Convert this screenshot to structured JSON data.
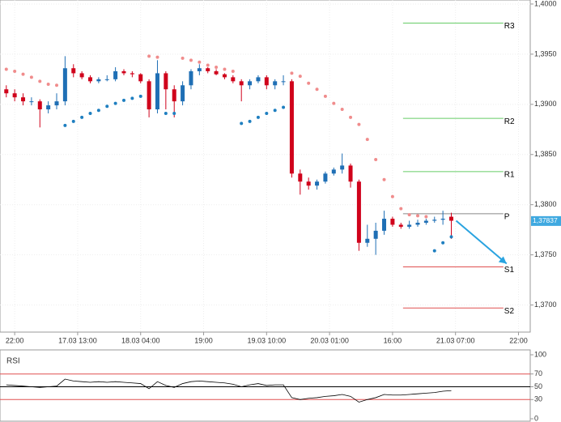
{
  "chart_data": [
    {
      "type": "candlestick",
      "x": [
        -2,
        0,
        2,
        4,
        6,
        8,
        10,
        12,
        14,
        16,
        18,
        20,
        22,
        24,
        26,
        28,
        30,
        32,
        34,
        36,
        38,
        40,
        42,
        44,
        46,
        48,
        50,
        52,
        54,
        56,
        58,
        60,
        62,
        64,
        66,
        68,
        70,
        72,
        74,
        76,
        78,
        80,
        82,
        84,
        86,
        88,
        90,
        92,
        94,
        96,
        98,
        100,
        102,
        104
      ],
      "ohlc": [
        [
          1.3915,
          1.3919,
          1.3907,
          1.3911
        ],
        [
          1.3911,
          1.3915,
          1.3903,
          1.3907
        ],
        [
          1.3907,
          1.3911,
          1.3899,
          1.3903
        ],
        [
          1.3903,
          1.3907,
          1.3899,
          1.3903
        ],
        [
          1.3903,
          1.3905,
          1.3877,
          1.3895
        ],
        [
          1.3895,
          1.3903,
          1.3891,
          1.3899
        ],
        [
          1.3899,
          1.3911,
          1.3895,
          1.3903
        ],
        [
          1.3903,
          1.3948,
          1.3899,
          1.3936
        ],
        [
          1.3936,
          1.394,
          1.3927,
          1.3931
        ],
        [
          1.3931,
          1.3933,
          1.3925,
          1.3927
        ],
        [
          1.3927,
          1.3929,
          1.3921,
          1.3923
        ],
        [
          1.3923,
          1.3927,
          1.3921,
          1.3925
        ],
        [
          1.3925,
          1.3929,
          1.3923,
          1.3925
        ],
        [
          1.3925,
          1.3937,
          1.3923,
          1.3933
        ],
        [
          1.3933,
          1.3935,
          1.3929,
          1.3931
        ],
        [
          1.3931,
          1.3933,
          1.3927,
          1.393
        ],
        [
          1.393,
          1.3931,
          1.3921,
          1.3923
        ],
        [
          1.3923,
          1.3925,
          1.3887,
          1.3895
        ],
        [
          1.3895,
          1.3944,
          1.3891,
          1.3931
        ],
        [
          1.3931,
          1.3933,
          1.3895,
          1.3915
        ],
        [
          1.3915,
          1.3919,
          1.3887,
          1.3903
        ],
        [
          1.3903,
          1.3923,
          1.3899,
          1.3919
        ],
        [
          1.3919,
          1.3935,
          1.3915,
          1.3933
        ],
        [
          1.3933,
          1.394,
          1.3929,
          1.3936
        ],
        [
          1.3936,
          1.3937,
          1.3931,
          1.3933
        ],
        [
          1.3933,
          1.3935,
          1.3929,
          1.393
        ],
        [
          1.393,
          1.3931,
          1.3925,
          1.3927
        ],
        [
          1.3927,
          1.3929,
          1.3921,
          1.3923
        ],
        [
          1.3923,
          1.3925,
          1.3903,
          1.3919
        ],
        [
          1.3919,
          1.3925,
          1.3915,
          1.3923
        ],
        [
          1.3923,
          1.3929,
          1.3921,
          1.3927
        ],
        [
          1.3927,
          1.3929,
          1.3915,
          1.3919
        ],
        [
          1.3919,
          1.3925,
          1.3915,
          1.3923
        ],
        [
          1.3923,
          1.3929,
          1.3919,
          1.3923
        ],
        [
          1.3923,
          1.3925,
          1.3827,
          1.3831
        ],
        [
          1.3831,
          1.3835,
          1.381,
          1.3823
        ],
        [
          1.3823,
          1.3827,
          1.3815,
          1.3819
        ],
        [
          1.3819,
          1.3825,
          1.3815,
          1.3823
        ],
        [
          1.3823,
          1.3833,
          1.3821,
          1.3831
        ],
        [
          1.3831,
          1.3837,
          1.3829,
          1.3835
        ],
        [
          1.3835,
          1.3851,
          1.3831,
          1.3839
        ],
        [
          1.3839,
          1.3841,
          1.3817,
          1.3823
        ],
        [
          1.3823,
          1.3825,
          1.3754,
          1.3762
        ],
        [
          1.3762,
          1.378,
          1.3758,
          1.3766
        ],
        [
          1.3766,
          1.3782,
          1.375,
          1.3774
        ],
        [
          1.3774,
          1.3794,
          1.377,
          1.3786
        ],
        [
          1.3786,
          1.3788,
          1.3778,
          1.378
        ],
        [
          1.378,
          1.3782,
          1.3776,
          1.3778
        ],
        [
          1.3778,
          1.3784,
          1.3776,
          1.378
        ],
        [
          1.378,
          1.3785,
          1.3778,
          1.3782
        ],
        [
          1.3782,
          1.3786,
          1.378,
          1.3784
        ],
        [
          1.3784,
          1.3788,
          1.3782,
          1.3785
        ],
        [
          1.3785,
          1.3794,
          1.378,
          1.3786
        ],
        [
          1.3788,
          1.3792,
          1.3766,
          1.3784
        ]
      ],
      "up_color": "#1f6fb5",
      "down_color": "#d0021b",
      "sar": {
        "above_color": "#f08c8c",
        "below_color": "#1f7fc0",
        "values": [
          1.3935,
          1.3933,
          1.393,
          1.3927,
          1.3923,
          1.392,
          1.3919,
          1.3879,
          1.3883,
          1.3887,
          1.3891,
          1.3894,
          1.3898,
          1.3901,
          1.3904,
          1.3906,
          1.3908,
          1.3948,
          1.3947,
          1.3891,
          1.3891,
          1.3946,
          1.3944,
          1.3942,
          1.3939,
          1.3937,
          1.3935,
          1.3933,
          1.3881,
          1.3883,
          1.3887,
          1.3891,
          1.3894,
          1.3897,
          1.3931,
          1.3928,
          1.3921,
          1.3915,
          1.3908,
          1.3901,
          1.3895,
          1.3887,
          1.388,
          1.3865,
          1.3845,
          1.3825,
          1.3808,
          1.3796,
          1.379,
          1.3789,
          1.3788,
          1.3754,
          1.3762,
          1.3768
        ]
      },
      "pivot_x": [
        92.5,
        116.4
      ],
      "pivots": [
        {
          "label": "R3",
          "value": 1.3981,
          "color": "#66cc66"
        },
        {
          "label": "R2",
          "value": 1.3886,
          "color": "#66cc66"
        },
        {
          "label": "R1",
          "value": 1.3833,
          "color": "#66cc66"
        },
        {
          "label": "P",
          "value": 1.3791,
          "color": "#888888"
        },
        {
          "label": "S1",
          "value": 1.3738,
          "color": "#e05050"
        },
        {
          "label": "S2",
          "value": 1.3697,
          "color": "#e05050"
        }
      ],
      "current_price": {
        "value": 1.37837,
        "label": "1,37837"
      },
      "xlim": [
        -3.5,
        122.8
      ],
      "xticks": [
        {
          "value": 0,
          "label": "22:00"
        },
        {
          "value": 15,
          "label": "17.03 13:00"
        },
        {
          "value": 30,
          "label": "18.03 04:00"
        },
        {
          "value": 45,
          "label": "19:00"
        },
        {
          "value": 60,
          "label": "19.03 10:00"
        },
        {
          "value": 75,
          "label": "20.03 01:00"
        },
        {
          "value": 90,
          "label": "16:00"
        },
        {
          "value": 105,
          "label": "21.03 07:00"
        },
        {
          "value": 120,
          "label": "22:00"
        }
      ],
      "ylim": [
        1.3673,
        1.4004
      ],
      "yticks": [
        {
          "value": 1.37,
          "label": "1,3700"
        },
        {
          "value": 1.375,
          "label": "1,3750"
        },
        {
          "value": 1.38,
          "label": "1,3800"
        },
        {
          "value": 1.385,
          "label": "1,3850"
        },
        {
          "value": 1.39,
          "label": "1,3900"
        },
        {
          "value": 1.395,
          "label": "1,3950"
        },
        {
          "value": 1.4,
          "label": "1,4000"
        }
      ],
      "grid": true
    },
    {
      "type": "line",
      "title": "RSI",
      "color": "#000000",
      "x": [
        -2,
        0,
        2,
        4,
        6,
        8,
        10,
        12,
        14,
        16,
        18,
        20,
        22,
        24,
        26,
        28,
        30,
        32,
        34,
        36,
        38,
        40,
        42,
        44,
        46,
        48,
        50,
        52,
        54,
        56,
        58,
        60,
        62,
        64,
        66,
        68,
        70,
        72,
        74,
        76,
        78,
        80,
        82,
        84,
        86,
        88,
        90,
        92,
        94,
        96,
        98,
        100,
        102,
        104
      ],
      "values": [
        53,
        52,
        51,
        50,
        49,
        50,
        51,
        62,
        59,
        58,
        57,
        58,
        57,
        58,
        57,
        56,
        55,
        47,
        58,
        52,
        49,
        55,
        58,
        59,
        58,
        57,
        56,
        54,
        50,
        53,
        55,
        52,
        53,
        53,
        33,
        30,
        32,
        33,
        35,
        36,
        38,
        35,
        26,
        30,
        33,
        38,
        37,
        37,
        38,
        39,
        40,
        41,
        43,
        44
      ],
      "levels": [
        {
          "value": 70,
          "color": "#e05050"
        },
        {
          "value": 50,
          "color": "#000000"
        },
        {
          "value": 30,
          "color": "#e05050"
        }
      ],
      "xlim": [
        -3.5,
        122.8
      ],
      "ylim": [
        -3.8,
        107.6
      ],
      "yticks": [
        100,
        70,
        50,
        30,
        0
      ]
    }
  ]
}
